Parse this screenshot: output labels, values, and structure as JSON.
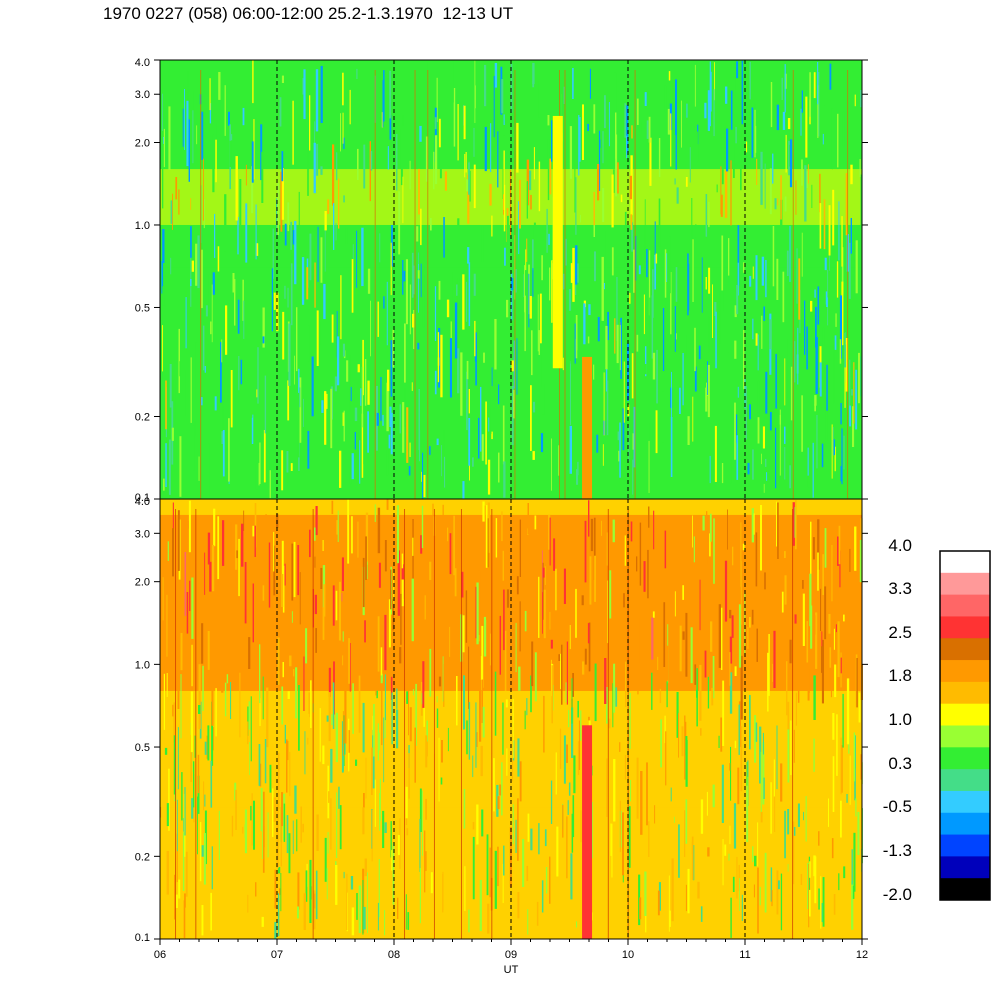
{
  "title": "1970 0227 (058) 06:00-12:00 25.2-1.3.1970  12-13 UT",
  "chart_data": [
    {
      "type": "heatmap",
      "panel": "upper",
      "xlim": [
        6,
        12
      ],
      "ylim": [
        0.1,
        4.0
      ],
      "yscale": "log",
      "y_ticks": [
        "4.0",
        "3.0",
        "2.0",
        "1.0",
        "0.5",
        "0.2",
        "0.1"
      ],
      "y_tick_values": [
        4.0,
        3.0,
        2.0,
        1.0,
        0.5,
        0.2,
        0.1
      ],
      "x_gridlines": [
        7,
        8,
        9,
        10,
        11
      ],
      "dominant_level": 0.3,
      "bands": [
        {
          "y_from": 0.1,
          "y_to": 0.7,
          "value": 0.3
        },
        {
          "y_from": 0.7,
          "y_to": 1.0,
          "value": 0.3
        },
        {
          "y_from": 1.0,
          "y_to": 1.6,
          "value": 1.0
        },
        {
          "y_from": 1.6,
          "y_to": 4.0,
          "value": 0.3
        }
      ],
      "features": [
        {
          "x": 9.65,
          "y_from": 0.1,
          "y_to": 0.33,
          "value": 1.8
        },
        {
          "x": 9.4,
          "y_from": 0.3,
          "y_to": 2.5,
          "value": 1.0
        }
      ]
    },
    {
      "type": "heatmap",
      "panel": "lower",
      "xlim": [
        6,
        12
      ],
      "ylim": [
        0.1,
        4.0
      ],
      "yscale": "log",
      "y_ticks": [
        "4.0",
        "3.0",
        "2.0",
        "1.0",
        "0.5",
        "0.2",
        "0.1"
      ],
      "y_tick_values": [
        4.0,
        3.0,
        2.0,
        1.0,
        0.5,
        0.2,
        0.1
      ],
      "x_ticks": [
        "06",
        "07",
        "08",
        "09",
        "10",
        "11",
        "12"
      ],
      "x_tick_values": [
        6,
        7,
        8,
        9,
        10,
        11,
        12
      ],
      "xlabel": "UT",
      "x_gridlines": [
        7,
        8,
        9,
        10,
        11
      ],
      "dominant_level": 1.8,
      "bands": [
        {
          "y_from": 0.1,
          "y_to": 0.3,
          "value": 1.0
        },
        {
          "y_from": 0.3,
          "y_to": 0.8,
          "value": 1.0
        },
        {
          "y_from": 0.8,
          "y_to": 3.5,
          "value": 1.8
        },
        {
          "y_from": 3.5,
          "y_to": 4.0,
          "value": 1.0
        }
      ],
      "features": [
        {
          "x": 9.65,
          "y_from": 0.1,
          "y_to": 0.6,
          "value": 2.5
        }
      ]
    }
  ],
  "colorbar": {
    "labels": [
      "4.0",
      "3.3",
      "2.5",
      "1.8",
      "1.0",
      "0.3",
      "-0.5",
      "-1.3",
      "-2.0"
    ],
    "label_values": [
      4.0,
      3.3,
      2.5,
      1.8,
      1.0,
      0.3,
      -0.5,
      -1.3,
      -2.0
    ],
    "colors": [
      "#ffffff",
      "#ff9999",
      "#ff6666",
      "#ff3333",
      "#d97000",
      "#ff9900",
      "#ffbb00",
      "#ffff00",
      "#99ff33",
      "#33ee33",
      "#44dd88",
      "#33ccff",
      "#0099ff",
      "#0044ff",
      "#0000bb",
      "#000000"
    ]
  }
}
